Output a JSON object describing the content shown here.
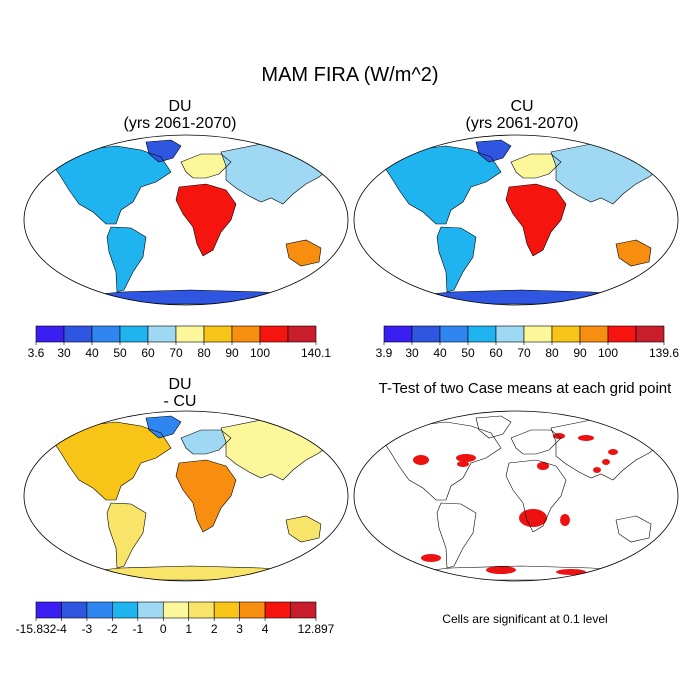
{
  "figure": {
    "title": "MAM FIRA (W/m^2)"
  },
  "panels": [
    {
      "id": "du",
      "title_line1": "DU",
      "title_line2": "(yrs 2061-2070)",
      "colorbar": {
        "labels": [
          "3.6",
          "30",
          "40",
          "50",
          "60",
          "70",
          "80",
          "90",
          "100",
          "140.1"
        ],
        "colors": [
          "#3a1ef2",
          "#2e56e0",
          "#2f86f0",
          "#1fb3f0",
          "#9ed8f2",
          "#fbf79a",
          "#f9c418",
          "#f78e10",
          "#f6150e",
          "#c81d2a"
        ]
      }
    },
    {
      "id": "cu",
      "title_line1": "CU",
      "title_line2": "(yrs 2061-2070)",
      "colorbar": {
        "labels": [
          "3.9",
          "30",
          "40",
          "50",
          "60",
          "70",
          "80",
          "90",
          "100",
          "139.6"
        ],
        "colors": [
          "#3a1ef2",
          "#2e56e0",
          "#2f86f0",
          "#1fb3f0",
          "#9ed8f2",
          "#fbf79a",
          "#f9c418",
          "#f78e10",
          "#f6150e",
          "#c81d2a"
        ]
      }
    },
    {
      "id": "diff",
      "title_line1": "DU",
      "title_line2": "- CU",
      "colorbar": {
        "labels": [
          "-15.832",
          "-4",
          "-3",
          "-2",
          "-1",
          "0",
          "1",
          "2",
          "3",
          "4",
          "12.897"
        ],
        "colors": [
          "#3a1ef2",
          "#2e56e0",
          "#2f86f0",
          "#1fb3f0",
          "#9ed8f2",
          "#fbf79a",
          "#f9e46a",
          "#f9c418",
          "#f78e10",
          "#f6150e",
          "#c81d2a"
        ]
      }
    },
    {
      "id": "ttest",
      "title_line1": "T-Test of two Case means at each grid point",
      "note": "Cells are significant at 0.1 level",
      "significant_color": "#ee1111"
    }
  ]
}
